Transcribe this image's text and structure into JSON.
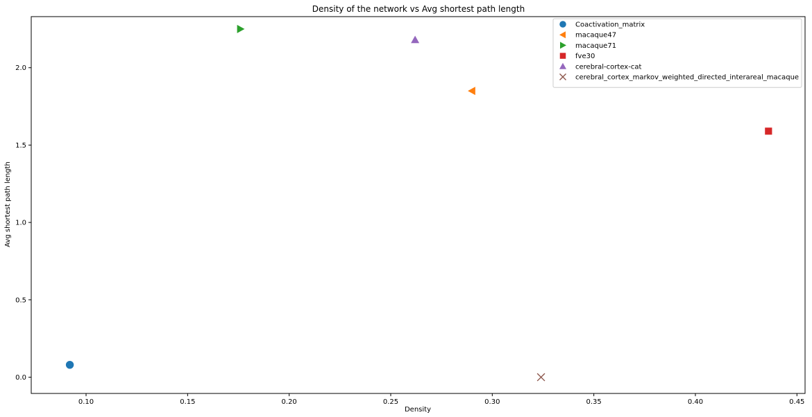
{
  "chart_data": {
    "type": "scatter",
    "title": "Density of the network vs Avg shortest path length",
    "xlabel": "Density",
    "ylabel": "Avg shortest path length",
    "xlim": [
      0.073,
      0.454
    ],
    "ylim": [
      -0.105,
      2.33
    ],
    "xticks": [
      0.1,
      0.15,
      0.2,
      0.25,
      0.3,
      0.35,
      0.4,
      0.45
    ],
    "xtick_labels": [
      "0.10",
      "0.15",
      "0.20",
      "0.25",
      "0.30",
      "0.35",
      "0.40",
      "0.45"
    ],
    "yticks": [
      0.0,
      0.5,
      1.0,
      1.5,
      2.0
    ],
    "ytick_labels": [
      "0.0",
      "0.5",
      "1.0",
      "1.5",
      "2.0"
    ],
    "grid": false,
    "legend_position": "top-right",
    "series": [
      {
        "name": "Coactivation_matrix",
        "x": 0.092,
        "y": 0.08,
        "marker": "circle",
        "color": "#1f77b4"
      },
      {
        "name": "macaque47",
        "x": 0.29,
        "y": 1.85,
        "marker": "triangle-left",
        "color": "#ff7f0e"
      },
      {
        "name": "macaque71",
        "x": 0.176,
        "y": 2.25,
        "marker": "triangle-right",
        "color": "#2ca02c"
      },
      {
        "name": "fve30",
        "x": 0.436,
        "y": 1.59,
        "marker": "square",
        "color": "#d62728"
      },
      {
        "name": "cerebral-cortex-cat",
        "x": 0.262,
        "y": 2.18,
        "marker": "triangle-up",
        "color": "#9467bd"
      },
      {
        "name": "cerebral_cortex_markov_weighted_directed_interareal_macaque",
        "x": 0.324,
        "y": 0.0,
        "marker": "x",
        "color": "#8c564b"
      }
    ]
  }
}
